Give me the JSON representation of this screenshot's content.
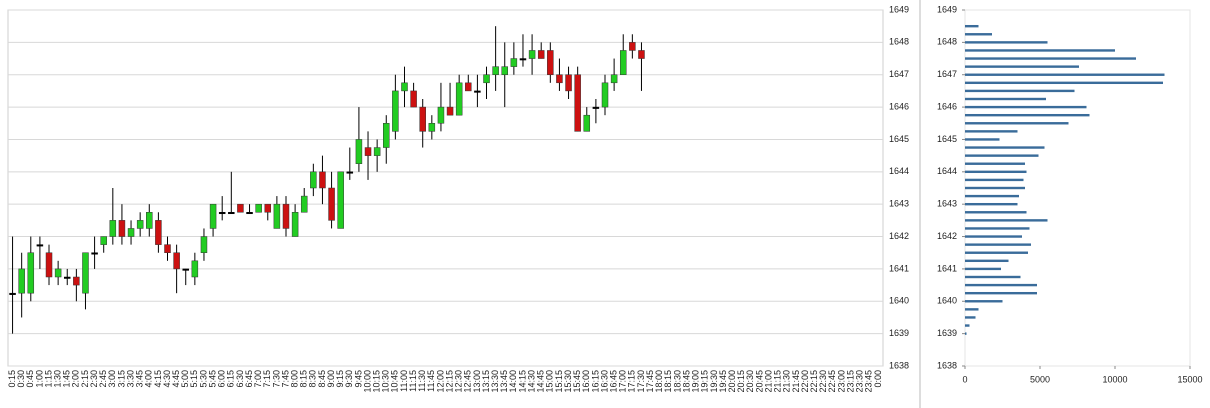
{
  "chart_data": [
    {
      "type": "candlestick",
      "categories": [
        "0:15",
        "0:30",
        "0:45",
        "1:00",
        "1:15",
        "1:30",
        "1:45",
        "2:00",
        "2:15",
        "2:30",
        "2:45",
        "3:00",
        "3:15",
        "3:30",
        "3:45",
        "4:00",
        "4:15",
        "4:30",
        "4:45",
        "5:00",
        "5:15",
        "5:30",
        "5:45",
        "6:00",
        "6:15",
        "6:30",
        "6:45",
        "7:00",
        "7:15",
        "7:30",
        "7:45",
        "8:00",
        "8:15",
        "8:30",
        "8:45",
        "9:00",
        "9:15",
        "9:30",
        "9:45",
        "10:00",
        "10:15",
        "10:30",
        "10:45",
        "11:00",
        "11:15",
        "11:30",
        "11:45",
        "12:00",
        "12:15",
        "12:30",
        "12:45",
        "13:00",
        "13:15",
        "13:30",
        "13:45",
        "14:00",
        "14:15",
        "14:30",
        "14:45",
        "15:00",
        "15:15",
        "15:30",
        "15:45",
        "16:00",
        "16:15",
        "16:30",
        "16:45",
        "17:00",
        "17:15",
        "17:30",
        "17:45",
        "18:00",
        "18:15",
        "18:30",
        "18:45",
        "19:00",
        "19:15",
        "19:30",
        "19:45",
        "20:00",
        "20:15",
        "20:30",
        "20:45",
        "21:00",
        "21:15",
        "21:30",
        "21:45",
        "22:00",
        "22:15",
        "22:30",
        "22:45",
        "23:00",
        "23:15",
        "23:30",
        "23:45",
        "0:00"
      ],
      "open": [
        1640.25,
        1640.25,
        1640.25,
        1641.75,
        1641.5,
        1640.75,
        1640.75,
        1640.75,
        1640.25,
        1641.5,
        1641.75,
        1642,
        1642.5,
        1642,
        1642.25,
        1642.25,
        1642.5,
        1641.75,
        1641.5,
        1641,
        1640.75,
        1641.5,
        1642.25,
        1642.75,
        1642.75,
        1643,
        1642.75,
        1642.75,
        1643,
        1642.25,
        1643,
        1642,
        1642.75,
        1643.5,
        1644,
        1643.5,
        1642.25,
        1644,
        1644.25,
        1644.75,
        1644.5,
        1644.75,
        1645.25,
        1646.5,
        1646.5,
        1646,
        1645.25,
        1645.5,
        1646,
        1645.75,
        1646.75,
        1646.5,
        1646.75,
        1647,
        1647,
        1647.25,
        1647.5,
        1647.5,
        1647.75,
        1647.75,
        1647,
        1647,
        1647,
        1645.25,
        1646,
        1646,
        1646.75,
        1647,
        1648,
        1647.75,
        null,
        null,
        null,
        null,
        null,
        null,
        null,
        null,
        null,
        null,
        null,
        null,
        null,
        null,
        null,
        null,
        null,
        null,
        null,
        null,
        null,
        null,
        null,
        null,
        null,
        null
      ],
      "high": [
        1642,
        1641.5,
        1642,
        1642,
        1641.75,
        1641.25,
        1641,
        1641,
        1641.5,
        1642,
        1642,
        1643.5,
        1643,
        1642.5,
        1642.75,
        1643,
        1642.75,
        1642,
        1641.75,
        1641,
        1641.5,
        1642.25,
        1643,
        1643.25,
        1644,
        1643,
        1643,
        1643,
        1643,
        1643.25,
        1643.25,
        1643,
        1643.5,
        1644.25,
        1644.5,
        1644,
        1644,
        1644.75,
        1646,
        1645.25,
        1645,
        1645.75,
        1647,
        1647.25,
        1646.75,
        1646.25,
        1645.75,
        1646.75,
        1646.75,
        1647,
        1647,
        1647,
        1647.25,
        1648.5,
        1648,
        1648,
        1648.25,
        1648.25,
        1648,
        1648,
        1647.5,
        1647.25,
        1647.25,
        1646,
        1646.25,
        1647,
        1647.5,
        1648.25,
        1648.25,
        1648,
        null,
        null,
        null,
        null,
        null,
        null,
        null,
        null,
        null,
        null,
        null,
        null,
        null,
        null,
        null,
        null,
        null,
        null,
        null,
        null,
        null,
        null,
        null,
        null,
        null,
        null
      ],
      "low": [
        1639,
        1639.5,
        1640,
        1641,
        1640.5,
        1640.5,
        1640.5,
        1640,
        1639.75,
        1641,
        1641.5,
        1641.75,
        1641.75,
        1641.75,
        1642,
        1642,
        1641.5,
        1641.25,
        1640.25,
        1640.5,
        1640.5,
        1641.25,
        1642,
        1642.5,
        1642.75,
        1642.75,
        1642.75,
        1642.75,
        1642.5,
        1642.25,
        1642,
        1642,
        1642.75,
        1643.25,
        1643,
        1642.25,
        1642.25,
        1643.75,
        1644,
        1643.75,
        1644,
        1644.25,
        1645,
        1646,
        1646,
        1644.75,
        1645,
        1645.25,
        1645.75,
        1645.75,
        1646.5,
        1646,
        1646.25,
        1646.5,
        1646,
        1647,
        1647.25,
        1647,
        1647.5,
        1646.75,
        1646.5,
        1646.25,
        1645.25,
        1645.25,
        1645.5,
        1645.75,
        1646.5,
        1647,
        1647.5,
        1646.5,
        null,
        null,
        null,
        null,
        null,
        null,
        null,
        null,
        null,
        null,
        null,
        null,
        null,
        null,
        null,
        null,
        null,
        null,
        null,
        null,
        null,
        null,
        null,
        null,
        null,
        null
      ],
      "close": [
        1640.25,
        1641,
        1641.5,
        1641.75,
        1640.75,
        1641,
        1640.75,
        1640.5,
        1641.5,
        1641.5,
        1642,
        1642.5,
        1642,
        1642.25,
        1642.5,
        1642.75,
        1641.75,
        1641.5,
        1641,
        1641,
        1641.25,
        1642,
        1643,
        1642.75,
        1642.75,
        1642.75,
        1642.75,
        1643,
        1642.75,
        1643,
        1642.25,
        1642.75,
        1643.25,
        1644,
        1643.5,
        1642.5,
        1644,
        1644,
        1645,
        1644.5,
        1644.75,
        1645.5,
        1646.5,
        1646.75,
        1646,
        1645.25,
        1645.5,
        1646,
        1645.75,
        1646.75,
        1646.5,
        1646.5,
        1647,
        1647.25,
        1647.25,
        1647.5,
        1647.5,
        1647.75,
        1647.5,
        1647,
        1646.75,
        1646.5,
        1645.25,
        1645.75,
        1646,
        1646.75,
        1647,
        1647.75,
        1647.75,
        1647.5,
        null,
        null,
        null,
        null,
        null,
        null,
        null,
        null,
        null,
        null,
        null,
        null,
        null,
        null,
        null,
        null,
        null,
        null,
        null,
        null,
        null,
        null,
        null,
        null,
        null,
        null
      ],
      "up_color": "#22cc22",
      "down_color": "#cc1111",
      "flat_color": "#000000",
      "ylim": [
        1638,
        1649
      ],
      "yticks": [
        1638,
        1639,
        1640,
        1641,
        1642,
        1643,
        1644,
        1645,
        1646,
        1647,
        1648,
        1649
      ],
      "grid": true
    },
    {
      "type": "barh",
      "y": [
        1639,
        1639.25,
        1639.5,
        1639.75,
        1640,
        1640.25,
        1640.5,
        1640.75,
        1641,
        1641.25,
        1641.5,
        1641.75,
        1642,
        1642.25,
        1642.5,
        1642.75,
        1643,
        1643.25,
        1643.5,
        1643.75,
        1644,
        1644.25,
        1644.5,
        1644.75,
        1645,
        1645.25,
        1645.5,
        1645.75,
        1646,
        1646.25,
        1646.5,
        1646.75,
        1647,
        1647.25,
        1647.5,
        1647.75,
        1648,
        1648.25,
        1648.5
      ],
      "values": [
        100,
        300,
        700,
        900,
        2500,
        4800,
        4800,
        3700,
        2400,
        2900,
        4200,
        4400,
        3800,
        4300,
        5500,
        4100,
        3500,
        3600,
        4000,
        3900,
        4100,
        4000,
        4900,
        5300,
        2300,
        3500,
        6900,
        8300,
        8100,
        5400,
        7300,
        13200,
        13300,
        7600,
        11400,
        10000,
        5500,
        1800,
        900
      ],
      "color": "#3a6c9a",
      "ylim": [
        1638,
        1649
      ],
      "yticks": [
        1638,
        1639,
        1640,
        1641,
        1642,
        1643,
        1644,
        1645,
        1646,
        1647,
        1648,
        1649
      ],
      "xlim": [
        0,
        15000
      ],
      "xticks": [
        0,
        5000,
        10000,
        15000
      ]
    }
  ]
}
